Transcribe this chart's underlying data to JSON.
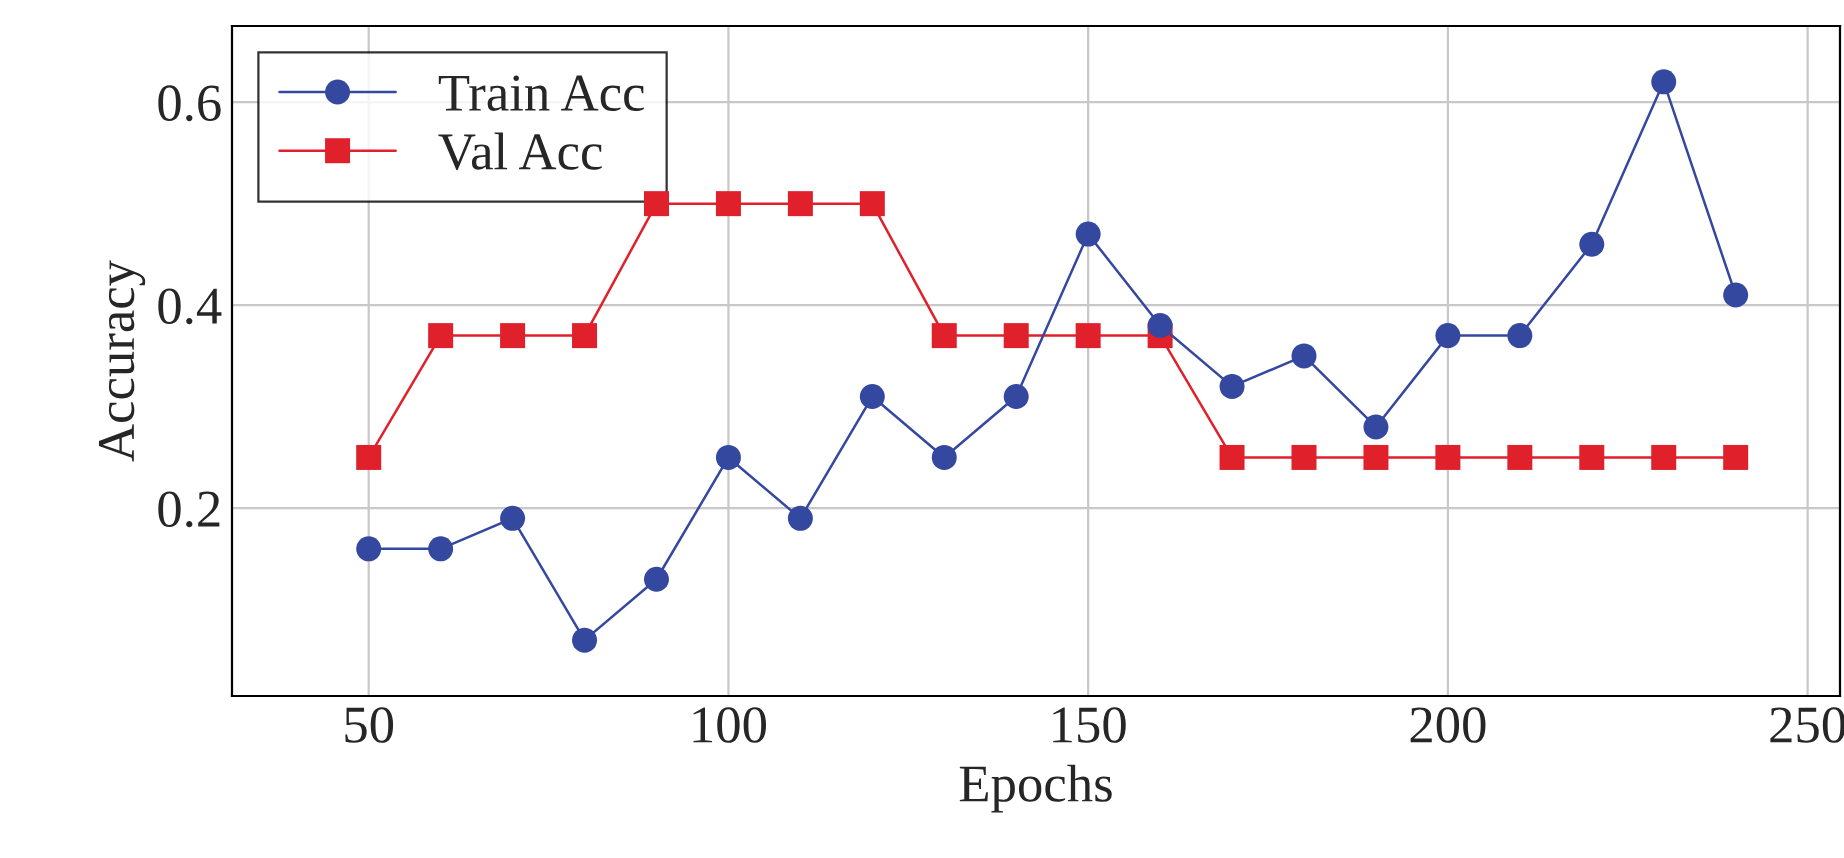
{
  "chart_data": {
    "type": "line",
    "xlabel": "Epochs",
    "ylabel": "Accuracy",
    "x": [
      50,
      60,
      70,
      80,
      90,
      100,
      110,
      120,
      130,
      140,
      150,
      160,
      170,
      180,
      190,
      200,
      210,
      220,
      230,
      240
    ],
    "series": [
      {
        "name": "Train Acc",
        "color": "#3548a0",
        "marker": "circle",
        "values": [
          0.16,
          0.16,
          0.19,
          0.07,
          0.13,
          0.25,
          0.19,
          0.31,
          0.25,
          0.31,
          0.47,
          0.38,
          0.32,
          0.35,
          0.28,
          0.37,
          0.37,
          0.46,
          0.62,
          0.41
        ]
      },
      {
        "name": "Val Acc",
        "color": "#e0202a",
        "marker": "square",
        "values": [
          0.25,
          0.37,
          0.37,
          0.37,
          0.5,
          0.5,
          0.5,
          0.5,
          0.37,
          0.37,
          0.37,
          0.37,
          0.25,
          0.25,
          0.25,
          0.25,
          0.25,
          0.25,
          0.25,
          0.25
        ]
      }
    ],
    "xlim": [
      31,
      254.5
    ],
    "xticks": [
      50,
      100,
      150,
      200,
      250
    ],
    "ylim": [
      0.015,
      0.675
    ],
    "yticks": [
      0.2,
      0.4,
      0.6
    ],
    "grid": true,
    "legend": "top left",
    "line_style": "solid"
  }
}
